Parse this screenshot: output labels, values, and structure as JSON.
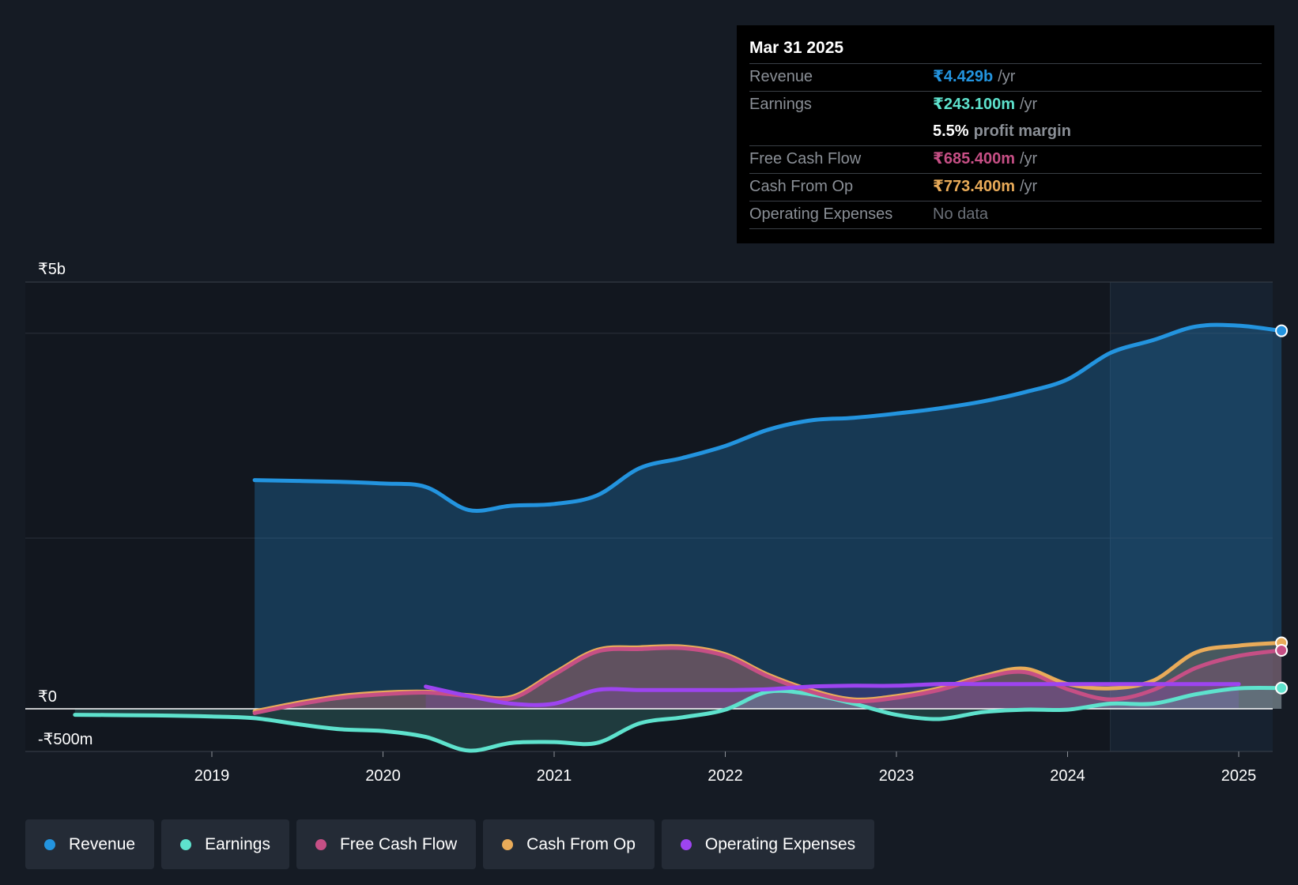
{
  "tooltip": {
    "date": "Mar 31 2025",
    "revenue": {
      "label": "Revenue",
      "value": "₹4.429b",
      "unit": "/yr"
    },
    "earnings": {
      "label": "Earnings",
      "value": "₹243.100m",
      "unit": "/yr"
    },
    "margin": {
      "value": "5.5%",
      "text": "profit margin"
    },
    "fcf": {
      "label": "Free Cash Flow",
      "value": "₹685.400m",
      "unit": "/yr"
    },
    "cfo": {
      "label": "Cash From Op",
      "value": "₹773.400m",
      "unit": "/yr"
    },
    "opex": {
      "label": "Operating Expenses",
      "value": "No data"
    }
  },
  "legend": [
    {
      "label": "Revenue",
      "color": "#2394df"
    },
    {
      "label": "Earnings",
      "color": "#5ee2cd"
    },
    {
      "label": "Free Cash Flow",
      "color": "#c64f85"
    },
    {
      "label": "Cash From Op",
      "color": "#e9ab59"
    },
    {
      "label": "Operating Expenses",
      "color": "#9d44f0"
    }
  ],
  "chart_data": {
    "type": "area",
    "title": "",
    "ylim": [
      -500,
      5000
    ],
    "y_tick_labels": [
      {
        "value": 5000,
        "label": "₹5b"
      },
      {
        "value": 0,
        "label": "₹0"
      },
      {
        "value": -500,
        "label": "-₹500m"
      }
    ],
    "x_ticks": [
      2019,
      2020,
      2021,
      2022,
      2023,
      2024,
      2025
    ],
    "x_tick_labels": [
      "2019",
      "2020",
      "2021",
      "2022",
      "2023",
      "2024",
      "2025"
    ],
    "xlim": [
      2018.0,
      2025.25
    ],
    "highlight_start": 2024.25,
    "units": "₹ millions",
    "series": [
      {
        "name": "Revenue",
        "color": "#2394df",
        "fill": true,
        "x": [
          2019.25,
          2019.5,
          2019.75,
          2020.0,
          2020.25,
          2020.5,
          2020.75,
          2021.0,
          2021.25,
          2021.5,
          2021.75,
          2022.0,
          2022.25,
          2022.5,
          2022.75,
          2023.0,
          2023.25,
          2023.5,
          2023.75,
          2024.0,
          2024.25,
          2024.5,
          2024.75,
          2025.0,
          2025.25
        ],
        "values": [
          2680,
          2670,
          2660,
          2640,
          2600,
          2330,
          2380,
          2400,
          2500,
          2820,
          2940,
          3080,
          3270,
          3380,
          3410,
          3460,
          3520,
          3600,
          3710,
          3860,
          4170,
          4320,
          4480,
          4490,
          4429
        ]
      },
      {
        "name": "Earnings",
        "color": "#5ee2cd",
        "fill": true,
        "x": [
          2018.2,
          2018.5,
          2018.75,
          2019.0,
          2019.25,
          2019.5,
          2019.75,
          2020.0,
          2020.25,
          2020.5,
          2020.75,
          2021.0,
          2021.25,
          2021.5,
          2021.75,
          2022.0,
          2022.25,
          2022.5,
          2022.75,
          2023.0,
          2023.25,
          2023.5,
          2023.75,
          2024.0,
          2024.25,
          2024.5,
          2024.75,
          2025.0,
          2025.25
        ],
        "values": [
          -70,
          -75,
          -80,
          -90,
          -110,
          -180,
          -240,
          -260,
          -330,
          -490,
          -400,
          -390,
          -400,
          -170,
          -100,
          -10,
          200,
          170,
          60,
          -70,
          -120,
          -40,
          -10,
          -10,
          60,
          60,
          170,
          240,
          243.1
        ]
      },
      {
        "name": "Free Cash Flow",
        "color": "#c64f85",
        "fill": true,
        "x": [
          2019.25,
          2019.5,
          2019.75,
          2020.0,
          2020.25,
          2020.5,
          2020.75,
          2021.0,
          2021.25,
          2021.5,
          2021.75,
          2022.0,
          2022.25,
          2022.5,
          2022.75,
          2023.0,
          2023.25,
          2023.5,
          2023.75,
          2024.0,
          2024.25,
          2024.5,
          2024.75,
          2025.0,
          2025.25
        ],
        "values": [
          -50,
          50,
          130,
          170,
          190,
          150,
          120,
          400,
          670,
          700,
          710,
          620,
          380,
          200,
          90,
          130,
          220,
          360,
          430,
          230,
          110,
          220,
          480,
          620,
          685.4
        ]
      },
      {
        "name": "Cash From Op",
        "color": "#e9ab59",
        "fill": true,
        "x": [
          2019.25,
          2019.5,
          2019.75,
          2020.0,
          2020.25,
          2020.5,
          2020.75,
          2021.0,
          2021.25,
          2021.5,
          2021.75,
          2022.0,
          2022.25,
          2022.5,
          2022.75,
          2023.0,
          2023.25,
          2023.5,
          2023.75,
          2024.0,
          2024.25,
          2024.5,
          2024.75,
          2025.0,
          2025.25
        ],
        "values": [
          -30,
          70,
          150,
          190,
          200,
          160,
          140,
          420,
          690,
          720,
          730,
          640,
          400,
          220,
          110,
          150,
          240,
          380,
          470,
          290,
          240,
          330,
          660,
          740,
          773.4
        ]
      },
      {
        "name": "Operating Expenses",
        "color": "#9d44f0",
        "fill": true,
        "x": [
          2020.25,
          2020.5,
          2020.75,
          2021.0,
          2021.25,
          2021.5,
          2021.75,
          2022.0,
          2022.25,
          2022.5,
          2022.75,
          2023.0,
          2023.25,
          2023.5,
          2023.75,
          2024.0,
          2024.25,
          2024.5,
          2024.75,
          2025.0
        ],
        "values": [
          260,
          150,
          60,
          60,
          220,
          220,
          220,
          220,
          230,
          260,
          270,
          270,
          290,
          290,
          290,
          290,
          290,
          290,
          290,
          290
        ]
      }
    ]
  }
}
